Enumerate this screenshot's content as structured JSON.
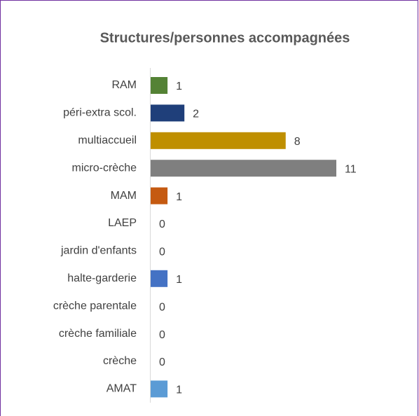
{
  "chart_data": {
    "type": "bar",
    "orientation": "horizontal",
    "title": "Structures/personnes accompagnées",
    "categories": [
      "RAM",
      "péri-extra scol.",
      "multiaccueil",
      "micro-crèche",
      "MAM",
      "LAEP",
      "jardin d'enfants",
      "halte-garderie",
      "crèche parentale",
      "crèche familiale",
      "crèche",
      "AMAT"
    ],
    "values": [
      1,
      2,
      8,
      11,
      1,
      0,
      0,
      1,
      0,
      0,
      0,
      1
    ],
    "colors": [
      "#548235",
      "#1f3f7a",
      "#bf8f00",
      "#7f7f7f",
      "#c55a11",
      "#a5a5a5",
      "#70ad47",
      "#4472c4",
      "#ffc000",
      "#264478",
      "#9e480e",
      "#5b9bd5"
    ]
  }
}
